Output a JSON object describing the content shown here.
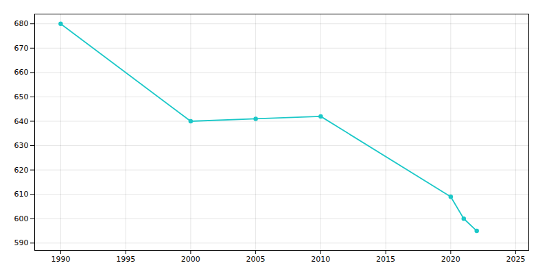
{
  "chart_data": {
    "type": "line",
    "x": [
      1990,
      2000,
      2005,
      2010,
      2020,
      2021,
      2022
    ],
    "values": [
      680,
      640,
      641,
      642,
      609,
      600,
      595
    ],
    "color": "#1BC8C8",
    "marker": "circle",
    "xlim": [
      1988,
      2026
    ],
    "ylim": [
      587,
      684
    ],
    "xticks": [
      1990,
      1995,
      2000,
      2005,
      2010,
      2015,
      2020,
      2025
    ],
    "yticks": [
      590,
      600,
      610,
      620,
      630,
      640,
      650,
      660,
      670,
      680
    ],
    "grid": true
  }
}
